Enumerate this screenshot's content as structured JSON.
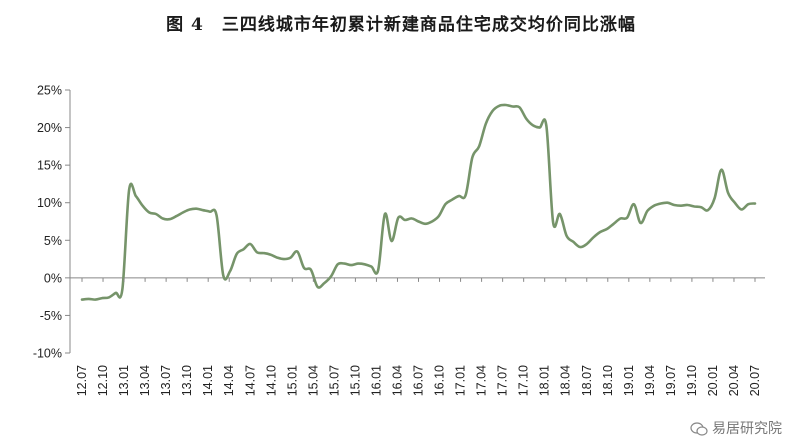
{
  "chart_data": {
    "type": "line",
    "title": "图 4　三四线城市年初累计新建商品住宅成交均价同比涨幅",
    "xlabel": "",
    "ylabel": "",
    "ylim": [
      -10,
      25
    ],
    "yticks": [
      "-10%",
      "-5%",
      "0%",
      "5%",
      "10%",
      "15%",
      "20%",
      "25%"
    ],
    "ytick_values": [
      -10,
      -5,
      0,
      5,
      10,
      15,
      20,
      25
    ],
    "xtick_labels": [
      "12.07",
      "12.10",
      "13.01",
      "13.04",
      "13.07",
      "13.10",
      "14.01",
      "14.04",
      "14.07",
      "14.10",
      "15.01",
      "15.04",
      "15.07",
      "15.10",
      "16.01",
      "16.04",
      "16.07",
      "16.10",
      "17.01",
      "17.04",
      "17.07",
      "17.10",
      "18.01",
      "18.04",
      "18.07",
      "18.10",
      "19.01",
      "19.04",
      "19.07",
      "19.10",
      "20.01",
      "20.04",
      "20.07"
    ],
    "grid": false,
    "line_color": "#76946a",
    "series": [
      {
        "values": [
          -2.9,
          -2.8,
          -2.9,
          -2.7,
          -2.6,
          -2.0,
          -1.5,
          11.7,
          10.9,
          9.6,
          8.7,
          8.5,
          7.9,
          7.8,
          8.2,
          8.7,
          9.1,
          9.2,
          9.0,
          8.8,
          8.3,
          0.3,
          0.9,
          3.2,
          3.8,
          4.5,
          3.4,
          3.3,
          3.1,
          2.7,
          2.5,
          2.7,
          3.5,
          1.3,
          1.1,
          -1.2,
          -0.7,
          0.2,
          1.8,
          1.9,
          1.7,
          1.9,
          1.8,
          1.5,
          1.0,
          8.5,
          4.9,
          8.0,
          7.7,
          7.9,
          7.5,
          7.2,
          7.5,
          8.2,
          9.8,
          10.4,
          10.9,
          11.0,
          16.0,
          17.5,
          20.5,
          22.2,
          22.9,
          23.0,
          22.8,
          22.7,
          21.2,
          20.3,
          20.0,
          20.2,
          7.4,
          8.5,
          5.6,
          4.8,
          4.1,
          4.5,
          5.4,
          6.1,
          6.5,
          7.2,
          7.9,
          8.0,
          9.8,
          7.3,
          8.9,
          9.6,
          9.9,
          10.0,
          9.7,
          9.6,
          9.7,
          9.5,
          9.4,
          9.0,
          10.6,
          14.4,
          11.3,
          10.0,
          9.1,
          9.8,
          9.9
        ]
      }
    ]
  },
  "watermark": "易居研究院"
}
